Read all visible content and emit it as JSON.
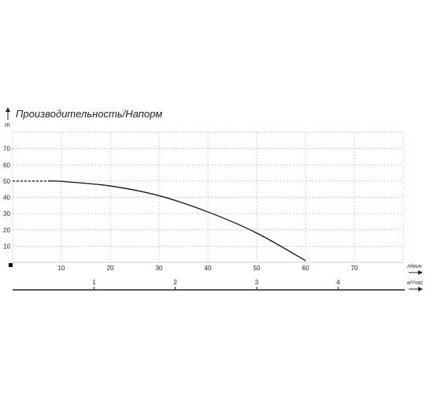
{
  "chart_data": {
    "type": "line",
    "title": "Производительность/Напорм",
    "ylabel": "m",
    "xlabel": "л/мин",
    "x2label": "м³/час",
    "x_ticks": [
      10,
      20,
      30,
      40,
      50,
      60,
      70
    ],
    "y_ticks": [
      10,
      20,
      30,
      40,
      50,
      60,
      70
    ],
    "x2_ticks": [
      1,
      2,
      3,
      4
    ],
    "xlim": [
      0,
      80
    ],
    "ylim": [
      0,
      80
    ],
    "grid": true,
    "series": [
      {
        "dashed_points": [
          [
            0,
            50
          ],
          [
            7.5,
            50
          ]
        ],
        "points": [
          [
            7.5,
            50
          ],
          [
            10,
            49.8
          ],
          [
            20,
            47
          ],
          [
            30,
            41
          ],
          [
            40,
            31
          ],
          [
            50,
            18
          ],
          [
            60,
            1
          ]
        ]
      }
    ],
    "colors": {
      "line": "#111111",
      "grid": "#bbbbbb",
      "axis": "#222222"
    }
  }
}
